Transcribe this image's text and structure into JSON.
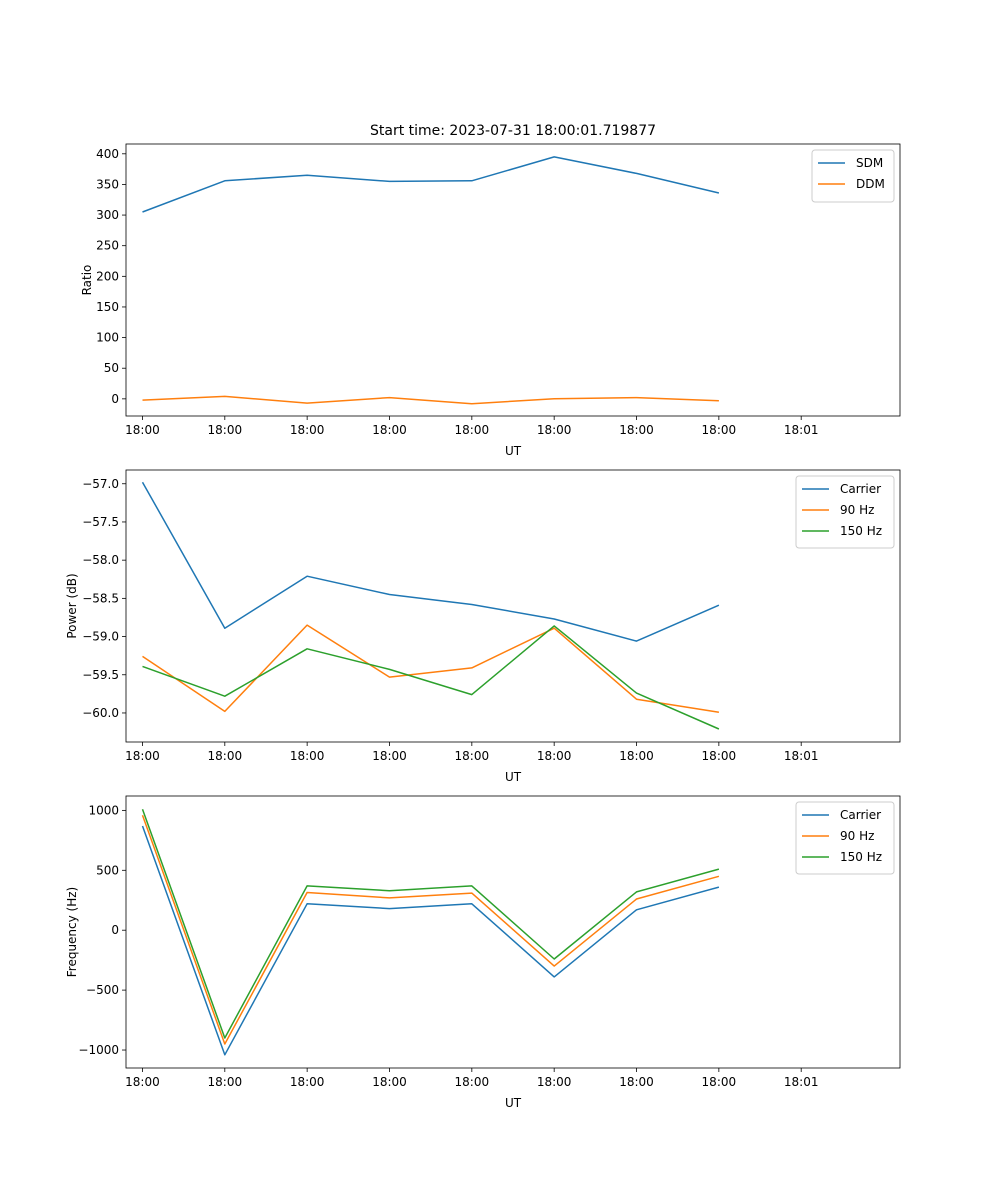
{
  "figure_title": "Start time: 2023-07-31 18:00:01.719877",
  "colors": {
    "blue": "#1f77b4",
    "orange": "#ff7f0e",
    "green": "#2ca02c"
  },
  "chart_data": [
    {
      "type": "line",
      "title": "Start time: 2023-07-31 18:00:01.719877",
      "xlabel": "UT",
      "ylabel": "Ratio",
      "x": [
        1,
        2,
        3,
        4,
        5,
        6,
        7,
        8
      ],
      "xlim": [
        0.8,
        10.2
      ],
      "ylim": [
        -28,
        416
      ],
      "x_ticks": [
        1,
        2,
        3,
        4,
        5,
        6,
        7,
        8,
        9
      ],
      "x_tick_labels": [
        "18:00",
        "18:00",
        "18:00",
        "18:00",
        "18:00",
        "18:00",
        "18:00",
        "18:00",
        "18:01"
      ],
      "y_ticks": [
        0,
        50,
        100,
        150,
        200,
        250,
        300,
        350,
        400
      ],
      "y_tick_labels": [
        "0",
        "50",
        "100",
        "150",
        "200",
        "250",
        "300",
        "350",
        "400"
      ],
      "legend_position": "top-right",
      "series": [
        {
          "name": "SDM",
          "color": "#1f77b4",
          "values": [
            305,
            356,
            365,
            355,
            356,
            395,
            368,
            336
          ]
        },
        {
          "name": "DDM",
          "color": "#ff7f0e",
          "values": [
            -2,
            4,
            -7,
            2,
            -8,
            0,
            2,
            -3
          ]
        }
      ]
    },
    {
      "type": "line",
      "title": "",
      "xlabel": "UT",
      "ylabel": "Power (dB)",
      "x": [
        1,
        2,
        3,
        4,
        5,
        6,
        7,
        8
      ],
      "xlim": [
        0.8,
        10.2
      ],
      "ylim": [
        -60.38,
        -56.82
      ],
      "x_ticks": [
        1,
        2,
        3,
        4,
        5,
        6,
        7,
        8,
        9
      ],
      "x_tick_labels": [
        "18:00",
        "18:00",
        "18:00",
        "18:00",
        "18:00",
        "18:00",
        "18:00",
        "18:00",
        "18:01"
      ],
      "y_ticks": [
        -57.0,
        -57.5,
        -58.0,
        -58.5,
        -59.0,
        -59.5,
        -60.0
      ],
      "y_tick_labels": [
        "−57.0",
        "−57.5",
        "−58.0",
        "−58.5",
        "−59.0",
        "−59.5",
        "−60.0"
      ],
      "legend_position": "top-right",
      "series": [
        {
          "name": "Carrier",
          "color": "#1f77b4",
          "values": [
            -56.98,
            -58.89,
            -58.21,
            -58.45,
            -58.58,
            -58.77,
            -59.06,
            -58.59
          ]
        },
        {
          "name": "90 Hz",
          "color": "#ff7f0e",
          "values": [
            -59.26,
            -59.98,
            -58.85,
            -59.53,
            -59.41,
            -58.89,
            -59.82,
            -59.99
          ]
        },
        {
          "name": "150 Hz",
          "color": "#2ca02c",
          "values": [
            -59.39,
            -59.78,
            -59.16,
            -59.43,
            -59.76,
            -58.86,
            -59.74,
            -60.21
          ]
        }
      ]
    },
    {
      "type": "line",
      "title": "",
      "xlabel": "UT",
      "ylabel": "Frequency (Hz)",
      "x": [
        1,
        2,
        3,
        4,
        5,
        6,
        7,
        8
      ],
      "xlim": [
        0.8,
        10.2
      ],
      "ylim": [
        -1150,
        1120
      ],
      "x_ticks": [
        1,
        2,
        3,
        4,
        5,
        6,
        7,
        8,
        9
      ],
      "x_tick_labels": [
        "18:00",
        "18:00",
        "18:00",
        "18:00",
        "18:00",
        "18:00",
        "18:00",
        "18:00",
        "18:01"
      ],
      "y_ticks": [
        -1000,
        -500,
        0,
        500,
        1000
      ],
      "y_tick_labels": [
        "−1000",
        "−500",
        "0",
        "500",
        "1000"
      ],
      "legend_position": "top-right",
      "series": [
        {
          "name": "Carrier",
          "color": "#1f77b4",
          "values": [
            870,
            -1040,
            220,
            180,
            220,
            -390,
            170,
            360
          ]
        },
        {
          "name": "90 Hz",
          "color": "#ff7f0e",
          "values": [
            960,
            -950,
            315,
            270,
            310,
            -300,
            260,
            450
          ]
        },
        {
          "name": "150 Hz",
          "color": "#2ca02c",
          "values": [
            1010,
            -900,
            370,
            330,
            370,
            -240,
            320,
            510
          ]
        }
      ]
    }
  ]
}
